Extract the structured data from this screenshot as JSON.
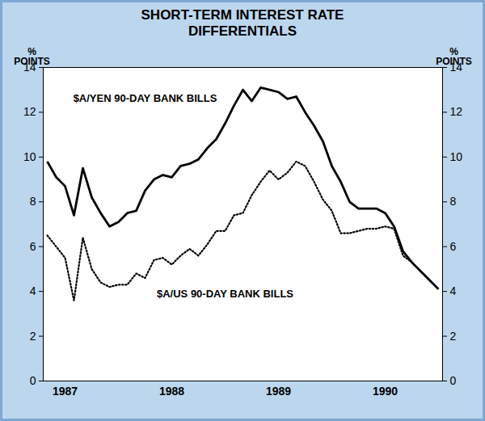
{
  "chart_data": {
    "type": "line",
    "title": "SHORT-TERM INTEREST RATE DIFFERENTIALS",
    "ylabel": "% POINTS",
    "y2label": "% POINTS",
    "categories": [
      null,
      null,
      "1987",
      null,
      null,
      null,
      null,
      null,
      null,
      null,
      null,
      null,
      null,
      null,
      "1988",
      null,
      null,
      null,
      null,
      null,
      null,
      null,
      null,
      null,
      null,
      null,
      "1989",
      null,
      null,
      null,
      null,
      null,
      null,
      null,
      null,
      null,
      null,
      null,
      "1990",
      null,
      null,
      null,
      null,
      null,
      null
    ],
    "series": [
      {
        "name": "$A/YEN 90-DAY BANK BILLS",
        "color": "#000000",
        "line_style": "solid",
        "values": [
          9.8,
          9.1,
          8.7,
          7.4,
          9.5,
          8.2,
          7.5,
          6.9,
          7.1,
          7.5,
          7.6,
          8.5,
          9.0,
          9.2,
          9.1,
          9.6,
          9.7,
          9.9,
          10.4,
          10.8,
          11.5,
          12.3,
          13.0,
          12.5,
          13.1,
          13.0,
          12.9,
          12.6,
          12.7,
          12.0,
          11.4,
          10.7,
          9.6,
          8.9,
          8.0,
          7.7,
          7.7,
          7.7,
          7.5,
          6.9,
          5.8,
          5.3,
          4.9,
          4.5,
          4.1
        ]
      },
      {
        "name": "$A/US 90-DAY BANK BILLS",
        "color": "#000000",
        "line_style": "dotted",
        "values": [
          6.5,
          6.0,
          5.5,
          3.6,
          6.4,
          5.0,
          4.4,
          4.2,
          4.3,
          4.3,
          4.8,
          4.6,
          5.4,
          5.5,
          5.2,
          5.6,
          5.9,
          5.6,
          6.1,
          6.7,
          6.7,
          7.4,
          7.5,
          8.3,
          8.9,
          9.4,
          9.0,
          9.3,
          9.8,
          9.6,
          8.9,
          8.1,
          7.6,
          6.6,
          6.6,
          6.7,
          6.8,
          6.8,
          6.9,
          6.8,
          5.6,
          5.3,
          4.9,
          4.5,
          4.1
        ]
      }
    ],
    "annotations": [
      {
        "text": "$A/YEN 90-DAY BANK BILLS",
        "x": 11,
        "y": 12.6
      },
      {
        "text": "$A/US 90-DAY BANK BILLS",
        "x": 20,
        "y": 3.9
      }
    ],
    "ylim": [
      0,
      14
    ],
    "yticks": [
      0,
      2,
      4,
      6,
      8,
      10,
      12,
      14
    ],
    "y2lim": [
      0,
      14
    ],
    "y2ticks": [
      0,
      2,
      4,
      6,
      8,
      10,
      12,
      14
    ],
    "grid": false
  }
}
